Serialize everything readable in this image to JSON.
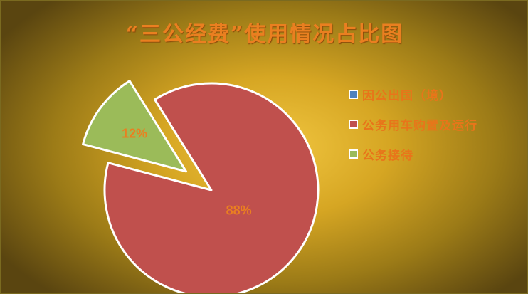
{
  "chart_data": {
    "type": "pie",
    "title": "“三公经费”使用情况占比图",
    "series": [
      {
        "name": "因公出国（境）",
        "value": 0,
        "label": "",
        "color": "#4f81bd"
      },
      {
        "name": "公务用车购置及运行",
        "value": 88,
        "label": "88%",
        "color": "#c0504d"
      },
      {
        "name": "公务接待",
        "value": 12,
        "label": "12%",
        "color": "#9bbb59"
      }
    ],
    "legend_position": "right",
    "exploded_slice": "公务接待"
  }
}
